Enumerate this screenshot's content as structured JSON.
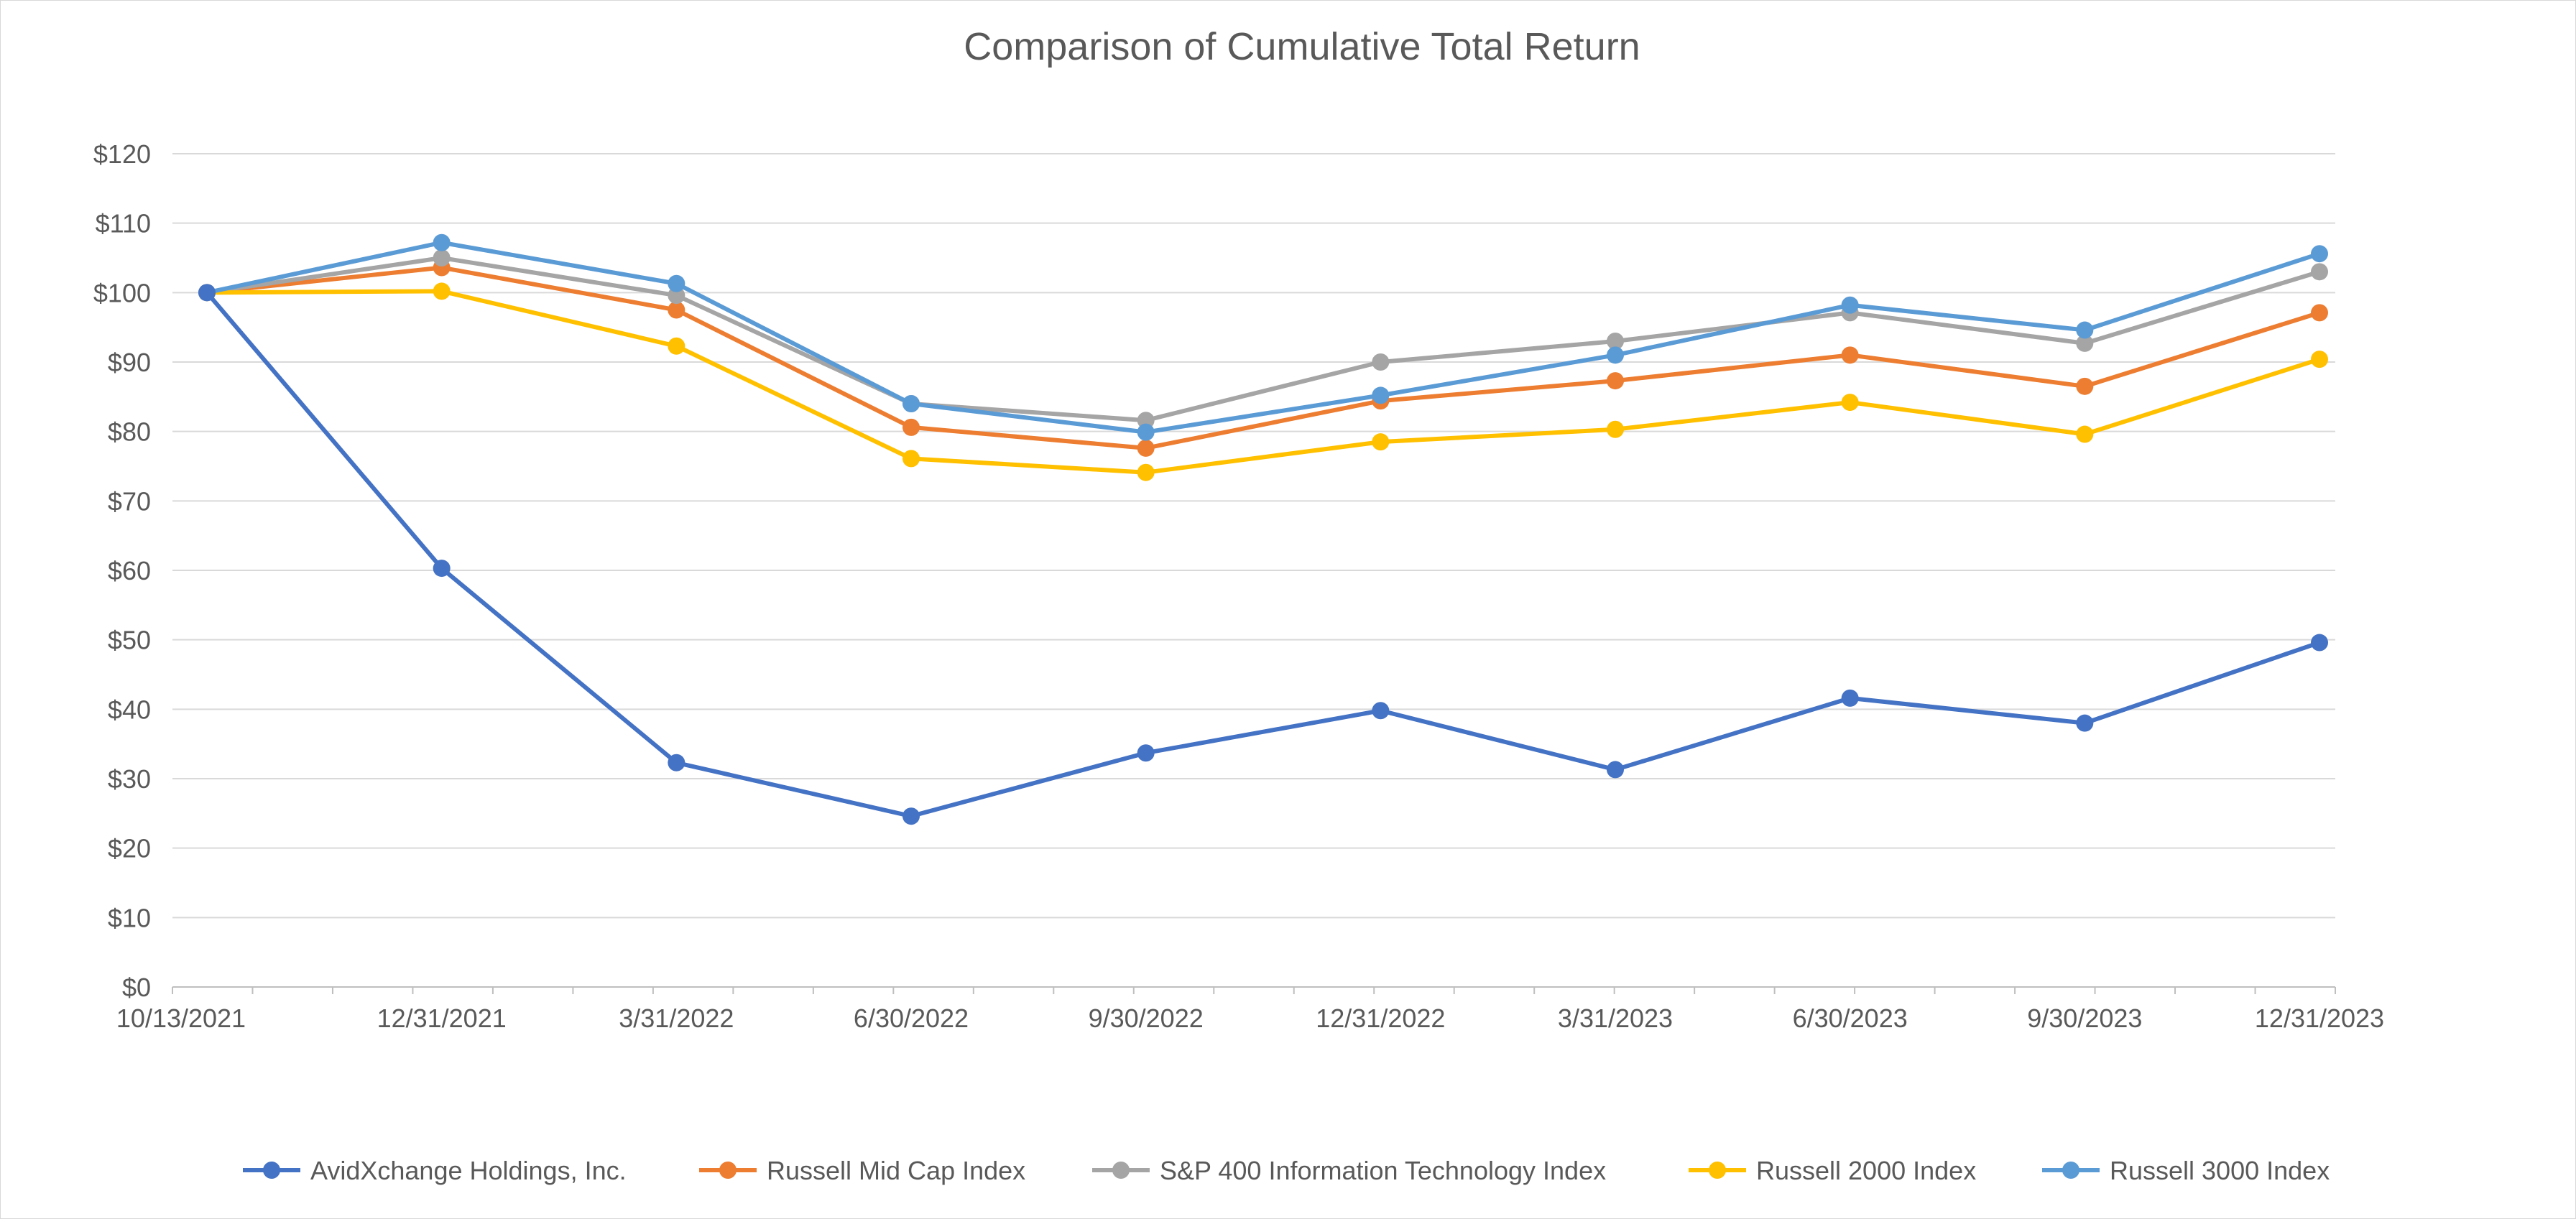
{
  "chart_data": {
    "type": "line",
    "title": "Comparison of Cumulative Total Return",
    "xlabel": "",
    "ylabel": "",
    "ylim": [
      0,
      120
    ],
    "y_ticks": [
      0,
      10,
      20,
      30,
      40,
      50,
      60,
      70,
      80,
      90,
      100,
      110,
      120
    ],
    "y_tick_labels": [
      "$0",
      "$10",
      "$20",
      "$30",
      "$40",
      "$50",
      "$60",
      "$70",
      "$80",
      "$90",
      "$100",
      "$110",
      "$120"
    ],
    "grid": true,
    "legend_position": "bottom",
    "categories": [
      "10/13/2021",
      "12/31/2021",
      "3/31/2022",
      "6/30/2022",
      "9/30/2022",
      "12/31/2022",
      "3/31/2023",
      "6/30/2023",
      "9/30/2023",
      "12/31/2023"
    ],
    "series": [
      {
        "name": "AvidXchange Holdings, Inc.",
        "color": "#4472c4",
        "values": [
          100,
          60.3,
          32.3,
          24.6,
          33.7,
          39.8,
          31.3,
          41.6,
          38.0,
          49.6
        ]
      },
      {
        "name": "Russell Mid Cap Index",
        "color": "#ed7d31",
        "values": [
          100,
          103.6,
          97.5,
          80.6,
          77.6,
          84.4,
          87.3,
          91.0,
          86.5,
          97.1
        ]
      },
      {
        "name": "S&P 400 Information Technology Index",
        "color": "#a5a5a5",
        "values": [
          100,
          105.0,
          99.6,
          84.0,
          81.6,
          90.0,
          93.0,
          97.1,
          92.7,
          103.0
        ]
      },
      {
        "name": "Russell 2000 Index",
        "color": "#ffc000",
        "values": [
          100,
          100.2,
          92.3,
          76.1,
          74.1,
          78.5,
          80.3,
          84.2,
          79.6,
          90.4
        ]
      },
      {
        "name": "Russell 3000 Index",
        "color": "#5b9bd5",
        "values": [
          100,
          107.2,
          101.3,
          84.0,
          79.9,
          85.2,
          91.0,
          98.2,
          94.6,
          105.6
        ]
      }
    ]
  }
}
